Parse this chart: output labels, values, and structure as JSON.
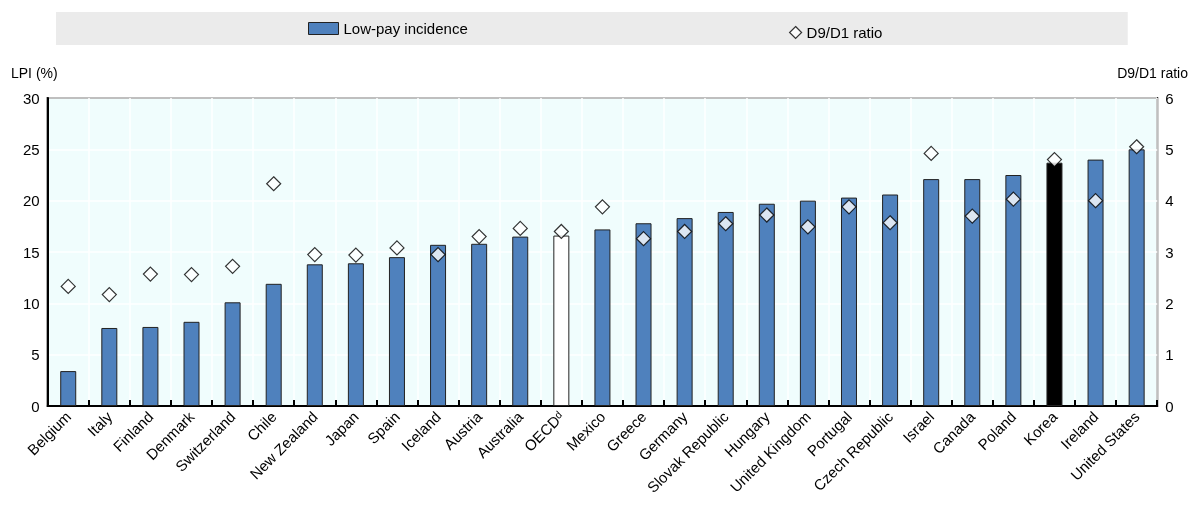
{
  "chart_data": {
    "type": "bar",
    "categories": [
      "Belgium",
      "Italy",
      "Finland",
      "Denmark",
      "Switzerland",
      "Chile",
      "New Zealand",
      "Japan",
      "Spain",
      "Iceland",
      "Austria",
      "Australia",
      "OECDᵈ",
      "Mexico",
      "Greece",
      "Germany",
      "Slovak Republic",
      "Hungary",
      "United Kingdom",
      "Portugal",
      "Czech Republic",
      "Israel",
      "Canada",
      "Poland",
      "Korea",
      "Ireland",
      "United States"
    ],
    "series": [
      {
        "name": "Low-pay incidence",
        "type": "bar",
        "color": "#4f81bd",
        "colors": [
          "#4f81bd",
          "#4f81bd",
          "#4f81bd",
          "#4f81bd",
          "#4f81bd",
          "#4f81bd",
          "#4f81bd",
          "#4f81bd",
          "#4f81bd",
          "#4f81bd",
          "#4f81bd",
          "#4f81bd",
          "#ffffff",
          "#4f81bd",
          "#4f81bd",
          "#4f81bd",
          "#4f81bd",
          "#4f81bd",
          "#4f81bd",
          "#4f81bd",
          "#4f81bd",
          "#4f81bd",
          "#4f81bd",
          "#4f81bd",
          "#000000",
          "#4f81bd",
          "#4f81bd"
        ],
        "values": [
          3.4,
          7.6,
          7.7,
          8.2,
          10.1,
          11.9,
          13.8,
          13.9,
          14.5,
          15.7,
          15.8,
          16.5,
          16.6,
          17.2,
          17.8,
          18.3,
          18.9,
          19.7,
          20.0,
          20.3,
          20.6,
          22.1,
          22.1,
          22.5,
          23.7,
          24.0,
          25.0
        ]
      },
      {
        "name": "D9/D1 ratio",
        "type": "scatter",
        "axis": "y2",
        "marker": "diamond",
        "color": "#ffffff",
        "values": [
          2.33,
          2.17,
          2.57,
          2.56,
          2.72,
          4.33,
          2.95,
          2.94,
          3.08,
          2.95,
          3.3,
          3.46,
          3.4,
          3.88,
          3.26,
          3.4,
          3.55,
          3.72,
          3.49,
          3.88,
          3.57,
          4.92,
          3.7,
          4.03,
          4.8,
          4.0,
          5.05
        ]
      }
    ],
    "ylabel": "LPI (%)",
    "y2label": "D9/D1 ratio",
    "ylim": [
      0,
      30
    ],
    "yticks": [
      0,
      5,
      10,
      15,
      20,
      25,
      30
    ],
    "y2lim": [
      0,
      6
    ],
    "y2ticks": [
      0,
      1,
      2,
      3,
      4,
      5,
      6
    ],
    "grid": true,
    "legend": "top"
  }
}
